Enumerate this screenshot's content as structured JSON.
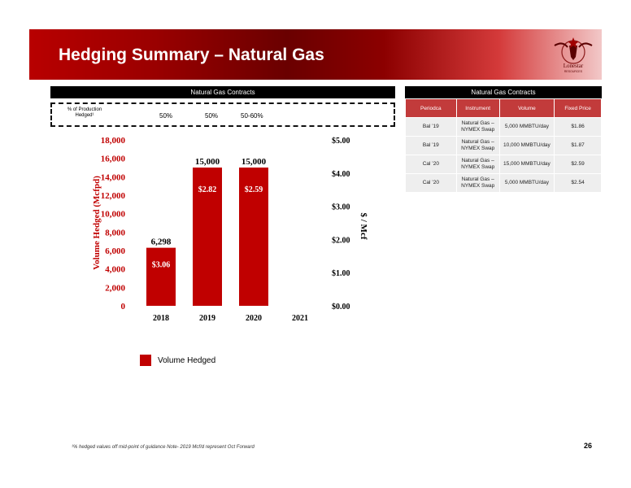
{
  "header": {
    "title": "Hedging Summary – Natural Gas"
  },
  "logo": {
    "text": "Lonestar",
    "subtext": "RESOURCES"
  },
  "left_panel": {
    "header": "Natural Gas Contracts",
    "production_hedged_label": "% of Production Hedged¹",
    "production_hedged_values": [
      "50%",
      "50%",
      "50-60%"
    ]
  },
  "right_panel": {
    "header": "Natural Gas Contracts",
    "columns": [
      "Periodca",
      "Instrument",
      "Volume",
      "Fixed Price"
    ],
    "rows": [
      [
        "Bal ’19",
        "Natural Gas – NYMEX Swap",
        "5,000 MMBTU/day",
        "$1.86"
      ],
      [
        "Bal ’19",
        "Natural Gas – NYMEX Swap",
        "10,000 MMBTU/day",
        "$1.87"
      ],
      [
        "Cal ’20",
        "Natural Gas – NYMEX Swap",
        "15,000 MMBTU/day",
        "$2.59"
      ],
      [
        "Cal ’20",
        "Natural Gas – NYMEX Swap",
        "5,000 MMBTU/day",
        "$2.54"
      ]
    ]
  },
  "chart_data": {
    "type": "bar",
    "categories": [
      "2018",
      "2019",
      "2020",
      "2021"
    ],
    "series": [
      {
        "name": "Volume Hedged",
        "values": [
          6298,
          15000,
          15000,
          null
        ],
        "color": "#c00000"
      }
    ],
    "value_labels": [
      "6,298",
      "15,000",
      "15,000",
      ""
    ],
    "price_labels": [
      "$3.06",
      "$2.82",
      "$2.59",
      ""
    ],
    "ylabel": "Volume Hedged (Mcfpd)",
    "y2label": "$ / Mcf",
    "ylim": [
      0,
      18000
    ],
    "y2lim": [
      0,
      5
    ],
    "yticks": [
      "0",
      "2,000",
      "4,000",
      "6,000",
      "8,000",
      "10,000",
      "12,000",
      "14,000",
      "16,000",
      "18,000"
    ],
    "y2ticks": [
      "$0.00",
      "$1.00",
      "$2.00",
      "$3.00",
      "$4.00",
      "$5.00"
    ],
    "legend_position": "bottom-left",
    "grid": false
  },
  "legend": {
    "label": "Volume Hedged"
  },
  "footnote": "¹% hedged values off mid-point of guidance    Note- 2019 Mcf/d represent Oct Forward",
  "page_number": "26"
}
